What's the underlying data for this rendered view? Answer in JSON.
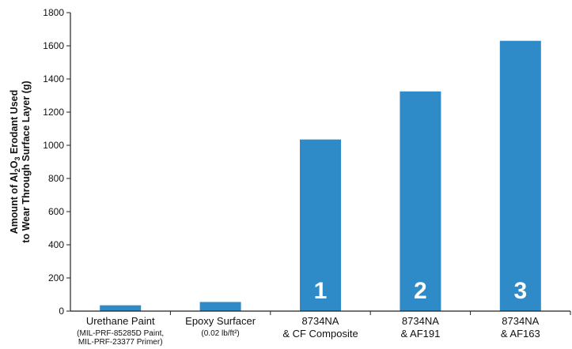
{
  "chart_data": {
    "type": "bar",
    "categories": [
      {
        "main": "Urethane Paint",
        "sub": [
          "(MIL-PRF-85285D Paint,",
          "MIL-PRF-23377 Primer)"
        ]
      },
      {
        "main": "Epoxy Surfacer",
        "sub": [
          "(0.02 lb/ft²)"
        ]
      },
      {
        "main": "8734NA",
        "main2": "& CF Composite",
        "sub": []
      },
      {
        "main": "8734NA",
        "main2": "& AF191",
        "sub": []
      },
      {
        "main": "8734NA",
        "main2": "& AF163",
        "sub": []
      }
    ],
    "values": [
      35,
      55,
      1035,
      1325,
      1630
    ],
    "bar_numbers": [
      "",
      "",
      "1",
      "2",
      "3"
    ],
    "ylim": [
      0,
      1800
    ],
    "yticks": [
      0,
      200,
      400,
      600,
      800,
      1000,
      1200,
      1400,
      1600,
      1800
    ],
    "ylabel": {
      "line1_pre": "Amount of Al",
      "line1_sub1": "2",
      "line1_mid": "O",
      "line1_sub2": "3",
      "line1_post": " Erodant Used",
      "line2": "to Wear Through Surface Layer (g)"
    },
    "grid": false,
    "colors": {
      "bar": "#2e8bc7",
      "axis": "#222222",
      "text": "#111111"
    }
  }
}
